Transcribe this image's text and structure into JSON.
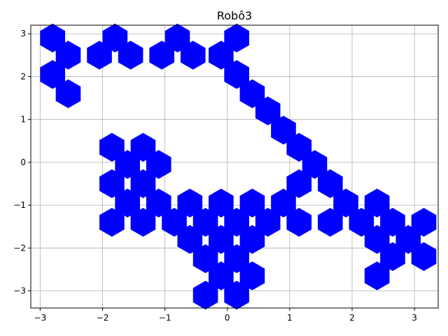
{
  "chart_data": {
    "type": "scatter",
    "title": "Robô3",
    "xlabel": "",
    "ylabel": "",
    "xlim": [
      -3.15,
      3.38
    ],
    "ylim": [
      -3.4,
      3.2
    ],
    "xticks": [
      -3,
      -2,
      -1,
      0,
      1,
      2,
      3
    ],
    "yticks": [
      -3,
      -2,
      -1,
      0,
      1,
      2,
      3
    ],
    "grid": true,
    "marker": "hexagon",
    "color": "#0000ff",
    "points": [
      {
        "x": -2.8,
        "y": 2.9
      },
      {
        "x": -2.55,
        "y": 2.5
      },
      {
        "x": -2.8,
        "y": 2.05
      },
      {
        "x": -2.55,
        "y": 1.6
      },
      {
        "x": -1.8,
        "y": 2.9
      },
      {
        "x": -2.05,
        "y": 2.5
      },
      {
        "x": -1.55,
        "y": 2.5
      },
      {
        "x": -0.8,
        "y": 2.9
      },
      {
        "x": -1.05,
        "y": 2.5
      },
      {
        "x": -0.55,
        "y": 2.5
      },
      {
        "x": 0.15,
        "y": 2.9
      },
      {
        "x": -0.1,
        "y": 2.5
      },
      {
        "x": 0.15,
        "y": 2.05
      },
      {
        "x": 0.4,
        "y": 1.6
      },
      {
        "x": 0.65,
        "y": 1.2
      },
      {
        "x": 0.9,
        "y": 0.75
      },
      {
        "x": 1.15,
        "y": 0.35
      },
      {
        "x": 1.4,
        "y": -0.05
      },
      {
        "x": 1.65,
        "y": -0.5
      },
      {
        "x": 1.9,
        "y": -0.95
      },
      {
        "x": 2.15,
        "y": -1.4
      },
      {
        "x": 2.4,
        "y": -0.95
      },
      {
        "x": 2.65,
        "y": -1.4
      },
      {
        "x": 2.4,
        "y": -1.8
      },
      {
        "x": 2.9,
        "y": -1.8
      },
      {
        "x": 3.15,
        "y": -1.4
      },
      {
        "x": 3.15,
        "y": -2.2
      },
      {
        "x": 2.65,
        "y": -2.2
      },
      {
        "x": 2.4,
        "y": -2.65
      },
      {
        "x": -1.85,
        "y": 0.35
      },
      {
        "x": -1.35,
        "y": 0.35
      },
      {
        "x": -1.6,
        "y": -0.05
      },
      {
        "x": -1.1,
        "y": -0.05
      },
      {
        "x": -1.85,
        "y": -0.5
      },
      {
        "x": -1.35,
        "y": -0.5
      },
      {
        "x": -1.6,
        "y": -0.95
      },
      {
        "x": -1.1,
        "y": -0.95
      },
      {
        "x": -1.85,
        "y": -1.4
      },
      {
        "x": -1.35,
        "y": -1.4
      },
      {
        "x": -0.85,
        "y": -1.4
      },
      {
        "x": -0.6,
        "y": -0.95
      },
      {
        "x": -0.1,
        "y": -0.95
      },
      {
        "x": 0.4,
        "y": -0.95
      },
      {
        "x": 0.9,
        "y": -0.95
      },
      {
        "x": -0.35,
        "y": -1.4
      },
      {
        "x": 0.15,
        "y": -1.4
      },
      {
        "x": 0.65,
        "y": -1.4
      },
      {
        "x": 1.15,
        "y": -1.4
      },
      {
        "x": 1.15,
        "y": -0.5
      },
      {
        "x": 1.65,
        "y": -1.4
      },
      {
        "x": -0.6,
        "y": -1.8
      },
      {
        "x": -0.1,
        "y": -1.8
      },
      {
        "x": 0.4,
        "y": -1.8
      },
      {
        "x": -0.35,
        "y": -2.25
      },
      {
        "x": 0.15,
        "y": -2.25
      },
      {
        "x": -0.1,
        "y": -2.65
      },
      {
        "x": 0.4,
        "y": -2.65
      },
      {
        "x": -0.35,
        "y": -3.1
      },
      {
        "x": 0.15,
        "y": -3.1
      }
    ]
  }
}
